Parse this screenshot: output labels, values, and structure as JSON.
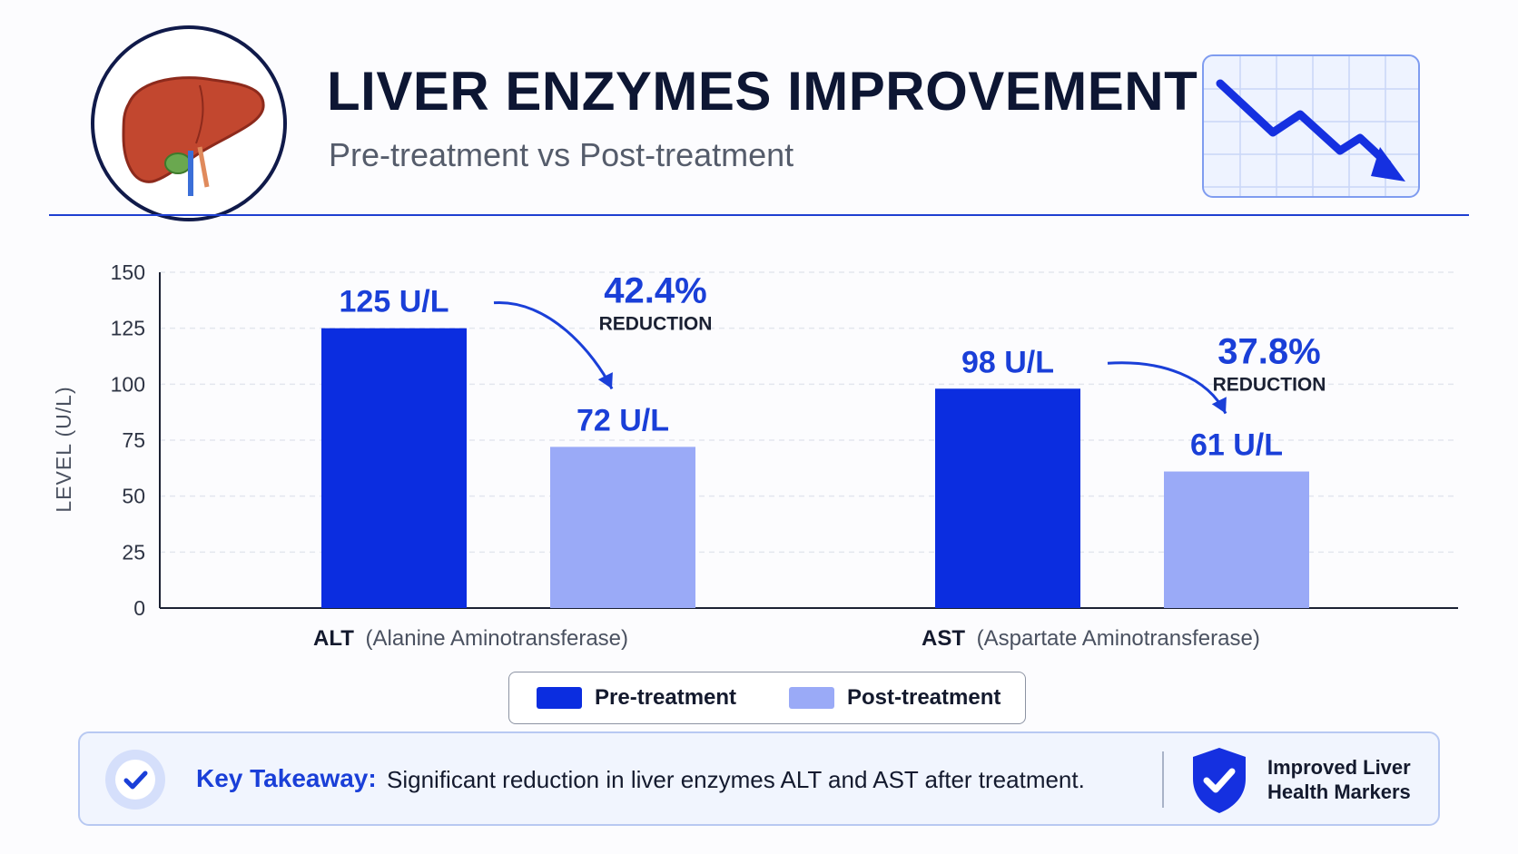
{
  "header": {
    "title": "LIVER ENZYMES IMPROVEMENT",
    "subtitle": "Pre-treatment vs Post-treatment",
    "logo_icon": "liver-icon",
    "trend_icon": "downtrend-chart-icon"
  },
  "colors": {
    "pre": "#0b2de0",
    "post": "#9aaaf7",
    "accent": "#1a3fd8",
    "ink": "#0d1633"
  },
  "chart_data": {
    "type": "bar",
    "ylabel": "LEVEL (U/L)",
    "ylim": [
      0,
      150
    ],
    "yticks": [
      0,
      25,
      50,
      75,
      100,
      125,
      150
    ],
    "grid": true,
    "legend_position": "bottom-center",
    "categories": [
      {
        "abbr": "ALT",
        "full": "(Alanine Aminotransferase)"
      },
      {
        "abbr": "AST",
        "full": "(Aspartate Aminotransferase)"
      }
    ],
    "series": [
      {
        "name": "Pre-treatment",
        "values": [
          125,
          98
        ],
        "labels": [
          "125 U/L",
          "98 U/L"
        ]
      },
      {
        "name": "Post-treatment",
        "values": [
          72,
          61
        ],
        "labels": [
          "72 U/L",
          "61 U/L"
        ]
      }
    ],
    "annotations": [
      {
        "category": "ALT",
        "percent": "42.4%",
        "label": "REDUCTION"
      },
      {
        "category": "AST",
        "percent": "37.8%",
        "label": "REDUCTION"
      }
    ]
  },
  "legend": {
    "items": [
      {
        "label": "Pre-treatment"
      },
      {
        "label": "Post-treatment"
      }
    ]
  },
  "takeaway": {
    "label": "Key Takeaway:",
    "text": "Significant reduction in liver enzymes ALT and AST after treatment.",
    "badge_icon": "shield-check-icon",
    "badge_text": "Improved Liver Health Markers"
  }
}
